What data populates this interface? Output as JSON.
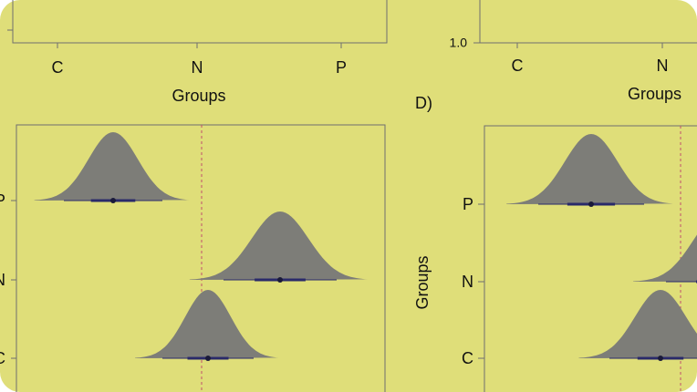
{
  "top_left": {
    "x_ticks": [
      "C",
      "N",
      "P"
    ],
    "x_label": "Groups"
  },
  "top_right": {
    "y_ticks": [
      "1.0"
    ],
    "x_ticks": [
      "C",
      "N"
    ],
    "x_label": "Groups"
  },
  "panel_label": "D)",
  "bottom_left": {
    "y_ticks": [
      "P",
      "N",
      "C"
    ]
  },
  "bottom_right": {
    "y_ticks": [
      "P",
      "N",
      "C"
    ],
    "y_label": "Groups"
  }
}
